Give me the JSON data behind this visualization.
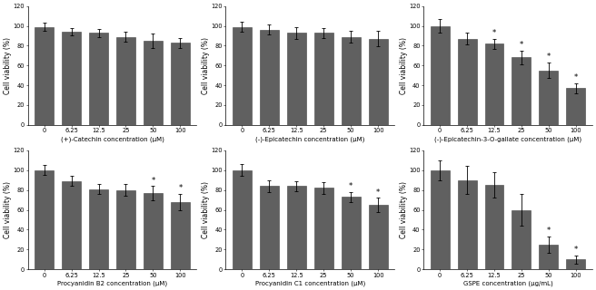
{
  "subplots": [
    {
      "title": "(+)-Catechin concentration (μM)",
      "xlabel_conc": [
        "0",
        "6.25",
        "12.5",
        "25",
        "50",
        "100"
      ],
      "means": [
        99,
        94,
        93,
        89,
        85,
        83
      ],
      "errors": [
        4,
        4,
        4,
        5,
        7,
        5
      ],
      "sig": [
        false,
        false,
        false,
        false,
        false,
        false
      ],
      "ylabel": "Cell viability (%)"
    },
    {
      "title": "(-)-Epicatechin concentration (μM)",
      "xlabel_conc": [
        "0",
        "6.25",
        "12.5",
        "25",
        "50",
        "100"
      ],
      "means": [
        99,
        96,
        93,
        93,
        89,
        87
      ],
      "errors": [
        5,
        5,
        6,
        5,
        6,
        8
      ],
      "sig": [
        false,
        false,
        false,
        false,
        false,
        false
      ],
      "ylabel": "Cell viability (%)"
    },
    {
      "title": "(-)-Epicatechin-3-O-gallate concentration (μM)",
      "xlabel_conc": [
        "0",
        "6.25",
        "12.5",
        "25",
        "50",
        "100"
      ],
      "means": [
        100,
        87,
        82,
        68,
        55,
        37
      ],
      "errors": [
        7,
        6,
        5,
        7,
        8,
        5
      ],
      "sig": [
        false,
        false,
        true,
        true,
        true,
        true
      ],
      "ylabel": "Cell viability (%)"
    },
    {
      "title": "Procyanidin B2 concentration (μM)",
      "xlabel_conc": [
        "0",
        "6.25",
        "12.5",
        "25",
        "50",
        "100"
      ],
      "means": [
        100,
        89,
        81,
        80,
        77,
        68
      ],
      "errors": [
        5,
        5,
        5,
        6,
        7,
        8
      ],
      "sig": [
        false,
        false,
        false,
        false,
        true,
        true
      ],
      "ylabel": "Cell viability (%)"
    },
    {
      "title": "Procyanidin C1 concentration (μM)",
      "xlabel_conc": [
        "0",
        "6.25",
        "12.5",
        "25",
        "50",
        "100"
      ],
      "means": [
        100,
        84,
        84,
        82,
        73,
        65
      ],
      "errors": [
        6,
        6,
        5,
        6,
        5,
        7
      ],
      "sig": [
        false,
        false,
        false,
        false,
        true,
        true
      ],
      "ylabel": "Cell viability (%)"
    },
    {
      "title": "GSPE concentration (μg/mL)",
      "xlabel_conc": [
        "0",
        "6.25",
        "12.5",
        "25",
        "50",
        "100"
      ],
      "means": [
        100,
        90,
        85,
        60,
        25,
        10
      ],
      "errors": [
        10,
        14,
        13,
        16,
        8,
        4
      ],
      "sig": [
        false,
        false,
        false,
        false,
        true,
        true
      ],
      "ylabel": "Cell viability (%)"
    }
  ],
  "bar_color": "#606060",
  "bar_edgecolor": "#404040",
  "bar_width": 0.7,
  "ylim": [
    0,
    120
  ],
  "yticks": [
    0,
    20,
    40,
    60,
    80,
    100,
    120
  ],
  "sig_marker": "*",
  "sig_fontsize": 6,
  "title_fontsize": 5.0,
  "ylabel_fontsize": 5.5,
  "tick_fontsize": 4.8
}
